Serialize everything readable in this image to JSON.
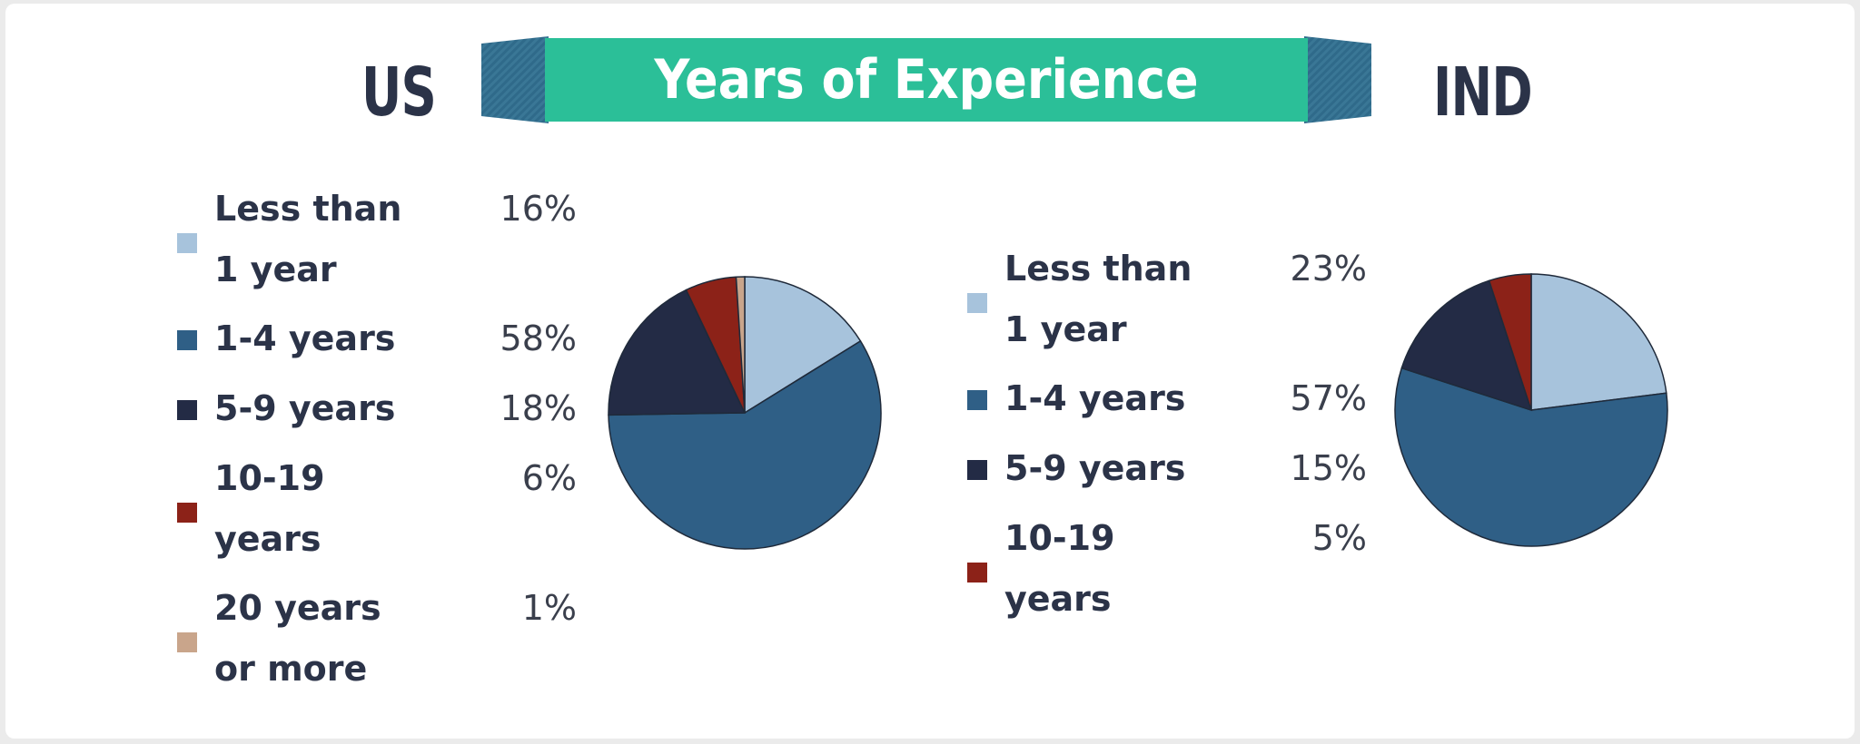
{
  "header": {
    "title": "Years of Experience",
    "left_region": "US",
    "right_region": "IND",
    "banner_color": "#2bbf98",
    "banner_tab_color": "#2f6a8a"
  },
  "colors": {
    "less_than_1": "#a7c3dc",
    "one_to_four": "#2f5f86",
    "five_to_nine": "#232b45",
    "ten_to_nineteen": "#8c2218",
    "twenty_plus": "#c9a58b"
  },
  "chart_data": [
    {
      "type": "pie",
      "title": "US",
      "categories": [
        "Less than 1 year",
        "1-4 years",
        "5-9 years",
        "10-19 years",
        "20 years or more"
      ],
      "values": [
        16,
        58,
        18,
        6,
        1
      ],
      "labels": [
        "16%",
        "58%",
        "18%",
        "6%",
        "1%"
      ],
      "colors": [
        "#a7c3dc",
        "#2f5f86",
        "#232b45",
        "#8c2218",
        "#c9a58b"
      ],
      "legend": "left"
    },
    {
      "type": "pie",
      "title": "IND",
      "categories": [
        "Less than 1 year",
        "1-4 years",
        "5-9 years",
        "10-19 years"
      ],
      "values": [
        23,
        57,
        15,
        5
      ],
      "labels": [
        "23%",
        "57%",
        "15%",
        "5%"
      ],
      "colors": [
        "#a7c3dc",
        "#2f5f86",
        "#232b45",
        "#8c2218"
      ],
      "legend": "left"
    }
  ]
}
